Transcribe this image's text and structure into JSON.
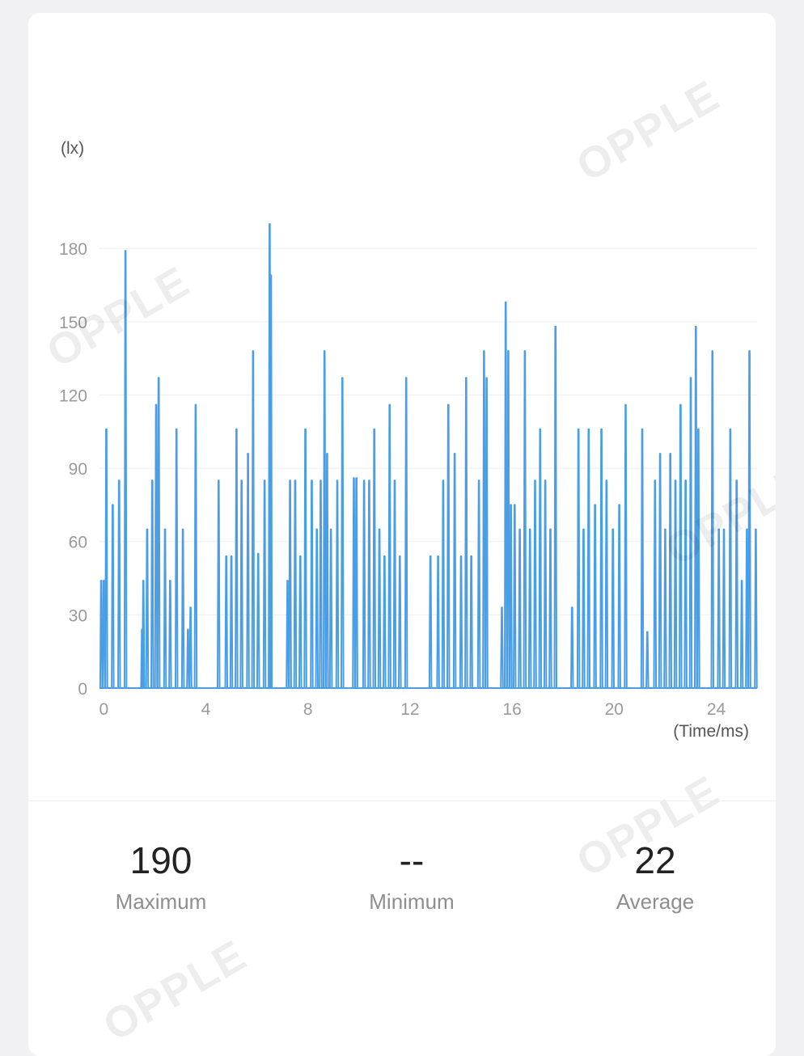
{
  "watermark": "OPPLE",
  "stats": {
    "maximum": {
      "value": "190",
      "label": "Maximum"
    },
    "minimum": {
      "value": "--",
      "label": "Minimum"
    },
    "average": {
      "value": "22",
      "label": "Average"
    }
  },
  "chart_data": {
    "type": "line",
    "ylabel": "(lx)",
    "xlabel": "(Time/ms)",
    "ylim": [
      0,
      190
    ],
    "xlim": [
      -0.2,
      25.6
    ],
    "yticks": [
      0,
      30,
      60,
      90,
      120,
      150,
      180
    ],
    "xticks": [
      0,
      4,
      8,
      12,
      16,
      20,
      24
    ],
    "grid": true,
    "color": "#4a9ee5",
    "spikes": [
      [
        -0.1,
        44
      ],
      [
        0.0,
        44
      ],
      [
        0.1,
        106
      ],
      [
        0.35,
        75
      ],
      [
        0.6,
        85
      ],
      [
        0.85,
        179
      ],
      [
        1.5,
        24
      ],
      [
        1.55,
        44
      ],
      [
        1.7,
        65
      ],
      [
        1.9,
        85
      ],
      [
        2.05,
        116
      ],
      [
        2.15,
        127
      ],
      [
        2.4,
        65
      ],
      [
        2.6,
        44
      ],
      [
        2.85,
        106
      ],
      [
        3.1,
        65
      ],
      [
        3.3,
        24
      ],
      [
        3.4,
        33
      ],
      [
        3.6,
        116
      ],
      [
        4.5,
        85
      ],
      [
        4.8,
        54
      ],
      [
        5.0,
        54
      ],
      [
        5.2,
        106
      ],
      [
        5.4,
        85
      ],
      [
        5.65,
        96
      ],
      [
        5.85,
        138
      ],
      [
        6.05,
        55
      ],
      [
        6.3,
        85
      ],
      [
        6.5,
        190
      ],
      [
        6.55,
        169
      ],
      [
        7.2,
        44
      ],
      [
        7.3,
        85
      ],
      [
        7.5,
        85
      ],
      [
        7.7,
        54
      ],
      [
        7.9,
        106
      ],
      [
        8.15,
        85
      ],
      [
        8.35,
        65
      ],
      [
        8.5,
        85
      ],
      [
        8.65,
        138
      ],
      [
        8.75,
        96
      ],
      [
        8.9,
        65
      ],
      [
        9.15,
        85
      ],
      [
        9.35,
        127
      ],
      [
        9.8,
        86
      ],
      [
        9.9,
        86
      ],
      [
        10.2,
        85
      ],
      [
        10.4,
        85
      ],
      [
        10.6,
        106
      ],
      [
        10.8,
        65
      ],
      [
        11.0,
        54
      ],
      [
        11.2,
        116
      ],
      [
        11.4,
        85
      ],
      [
        11.6,
        54
      ],
      [
        11.85,
        127
      ],
      [
        12.8,
        54
      ],
      [
        13.1,
        54
      ],
      [
        13.3,
        85
      ],
      [
        13.5,
        116
      ],
      [
        13.75,
        96
      ],
      [
        14.0,
        54
      ],
      [
        14.2,
        127
      ],
      [
        14.4,
        54
      ],
      [
        14.7,
        85
      ],
      [
        14.9,
        138
      ],
      [
        15.0,
        127
      ],
      [
        15.6,
        33
      ],
      [
        15.75,
        158
      ],
      [
        15.85,
        138
      ],
      [
        15.95,
        75
      ],
      [
        16.1,
        75
      ],
      [
        16.3,
        65
      ],
      [
        16.5,
        138
      ],
      [
        16.7,
        65
      ],
      [
        16.9,
        85
      ],
      [
        17.1,
        106
      ],
      [
        17.3,
        85
      ],
      [
        17.5,
        65
      ],
      [
        17.7,
        148
      ],
      [
        18.35,
        33
      ],
      [
        18.6,
        106
      ],
      [
        18.8,
        65
      ],
      [
        19.0,
        106
      ],
      [
        19.25,
        75
      ],
      [
        19.5,
        106
      ],
      [
        19.7,
        85
      ],
      [
        19.95,
        65
      ],
      [
        20.2,
        75
      ],
      [
        20.45,
        116
      ],
      [
        21.1,
        106
      ],
      [
        21.3,
        23
      ],
      [
        21.6,
        85
      ],
      [
        21.8,
        96
      ],
      [
        22.0,
        65
      ],
      [
        22.2,
        96
      ],
      [
        22.4,
        85
      ],
      [
        22.6,
        116
      ],
      [
        22.8,
        85
      ],
      [
        23.0,
        127
      ],
      [
        23.2,
        148
      ],
      [
        23.3,
        106
      ],
      [
        23.85,
        138
      ],
      [
        24.1,
        65
      ],
      [
        24.3,
        65
      ],
      [
        24.55,
        106
      ],
      [
        24.8,
        85
      ],
      [
        25.0,
        44
      ],
      [
        25.2,
        65
      ],
      [
        25.3,
        138
      ],
      [
        25.55,
        65
      ]
    ]
  }
}
